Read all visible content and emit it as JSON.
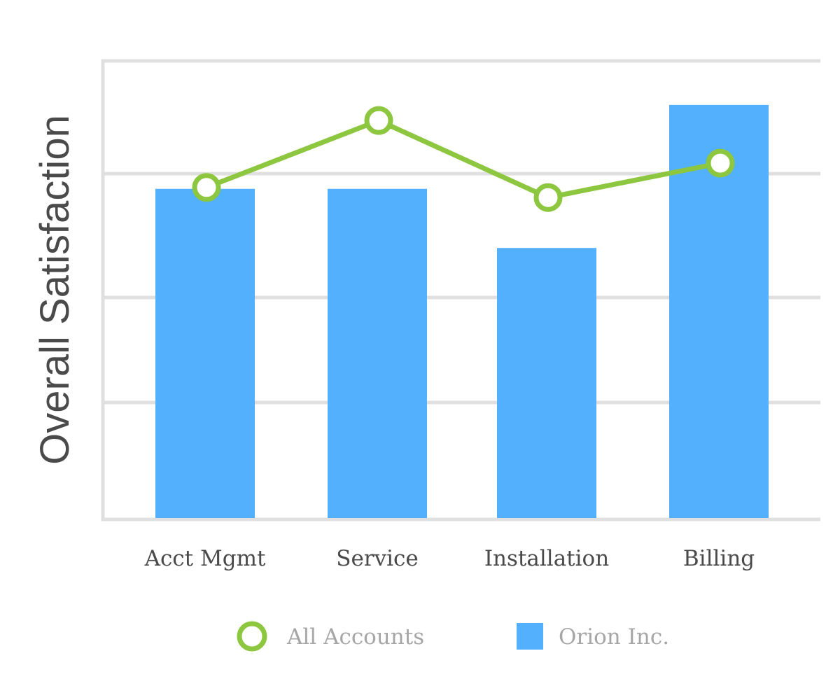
{
  "chart_data": {
    "type": "bar",
    "title": "",
    "xlabel": "",
    "ylabel": "Overall Satisfaction",
    "ylim": [
      0,
      100
    ],
    "y_ticks_labeled": false,
    "gridlines": [
      25.5,
      48.4,
      75.4,
      100
    ],
    "grid": true,
    "categories": [
      "Acct Mgmt",
      "Service",
      "Installation",
      "Billing"
    ],
    "series": [
      {
        "name": "Orion Inc.",
        "type": "bar",
        "color": "#52b0fd",
        "values": [
          72.1,
          72.1,
          59.2,
          90.4
        ]
      },
      {
        "name": "All Accounts",
        "type": "line",
        "color": "#8dc63f",
        "values": [
          72.4,
          87.0,
          70.2,
          77.7
        ]
      }
    ],
    "legend": {
      "position": "bottom",
      "items": [
        "All Accounts",
        "Orion Inc."
      ]
    }
  }
}
